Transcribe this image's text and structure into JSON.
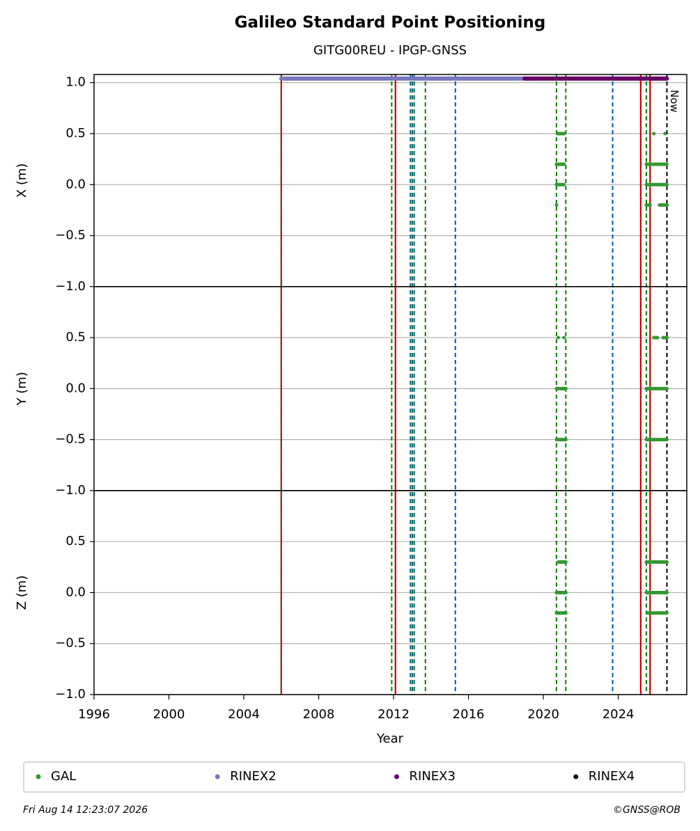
{
  "chart_data": {
    "type": "scatter",
    "title": "Galileo Standard Point Positioning",
    "subtitle": "GITG00REU - IPGP-GNSS",
    "xlabel": "Year",
    "xlim": [
      1996,
      2027.66
    ],
    "xticks": [
      1996,
      2000,
      2004,
      2008,
      2012,
      2016,
      2020,
      2024
    ],
    "grid": true,
    "series": [
      {
        "name": "GAL",
        "color": "#339933"
      },
      {
        "name": "RINEX2",
        "color": "#7777bb",
        "x": [
          2006.0,
          2019.0
        ],
        "y": [
          1.04,
          1.04
        ]
      },
      {
        "name": "RINEX3",
        "color": "#660066",
        "x": [
          2019.0,
          2026.6
        ],
        "y": [
          1.04,
          1.04
        ]
      },
      {
        "name": "RINEX4",
        "color": "#220011"
      }
    ],
    "events": [
      {
        "x": 2006.0,
        "color": "#cc0000",
        "style": "solid"
      },
      {
        "x": 2006.0,
        "color": "#008000",
        "style": "dotted"
      },
      {
        "x": 2011.9,
        "color": "#008000",
        "style": "dashed"
      },
      {
        "x": 2012.1,
        "color": "#cc0000",
        "style": "solid"
      },
      {
        "x": 2012.9,
        "color": "#0055aa",
        "style": "dashed"
      },
      {
        "x": 2013.0,
        "color": "#008000",
        "style": "dashed"
      },
      {
        "x": 2013.1,
        "color": "#0055aa",
        "style": "dashed"
      },
      {
        "x": 2013.7,
        "color": "#008000",
        "style": "dashed"
      },
      {
        "x": 2015.3,
        "color": "#0055aa",
        "style": "dashed"
      },
      {
        "x": 2020.7,
        "color": "#008000",
        "style": "dashed"
      },
      {
        "x": 2021.2,
        "color": "#008000",
        "style": "dashed"
      },
      {
        "x": 2023.7,
        "color": "#0055aa",
        "style": "dashed"
      },
      {
        "x": 2025.2,
        "color": "#cc0000",
        "style": "solid"
      },
      {
        "x": 2025.5,
        "color": "#008000",
        "style": "dashed"
      },
      {
        "x": 2025.7,
        "color": "#cc0000",
        "style": "solid"
      },
      {
        "x": 2026.6,
        "color": "#000000",
        "style": "dashed",
        "label": "Now"
      }
    ],
    "panels": [
      {
        "ylabel": "X (m)",
        "ylim": [
          -1,
          1.08
        ],
        "yticks": [
          {
            "value": 1,
            "label": "1.0"
          },
          0.5,
          {
            "value": 0,
            "label": "0.0"
          },
          {
            "value": -0.5,
            "label": "−0.5"
          },
          {
            "value": -1,
            "label": "−1.0"
          }
        ],
        "runs": [
          {
            "x": [
              2020.75,
              2021.1
            ],
            "y": 0.5
          },
          {
            "x": [
              2020.7,
              2021.1
            ],
            "y": 0.2
          },
          {
            "x": [
              2020.7,
              2021.1
            ],
            "y": 0.0
          },
          {
            "x": [
              2020.7,
              2020.7
            ],
            "y": -0.2
          },
          {
            "x": [
              2025.5,
              2026.6
            ],
            "y": 0.2
          },
          {
            "x": [
              2025.5,
              2026.6
            ],
            "y": 0.0
          },
          {
            "x": [
              2025.5,
              2025.7
            ],
            "y": -0.2
          },
          {
            "x": [
              2026.2,
              2026.6
            ],
            "y": -0.2
          },
          {
            "x": [
              2025.9,
              2025.9
            ],
            "y": 0.5
          },
          {
            "x": [
              2026.5,
              2026.5
            ],
            "y": 0.5
          }
        ]
      },
      {
        "ylabel": "Y (m)",
        "ylim": [
          -1,
          1
        ],
        "yticks": [
          0.5,
          {
            "value": 0,
            "label": "0.0"
          },
          {
            "value": -0.5,
            "label": "−0.5"
          },
          {
            "value": -1,
            "label": "−1.0"
          }
        ],
        "runs": [
          {
            "x": [
              2020.8,
              2020.8
            ],
            "y": 0.5
          },
          {
            "x": [
              2021.1,
              2021.1
            ],
            "y": 0.5
          },
          {
            "x": [
              2020.7,
              2021.2
            ],
            "y": 0.0
          },
          {
            "x": [
              2020.7,
              2021.2
            ],
            "y": -0.5
          },
          {
            "x": [
              2025.9,
              2026.1
            ],
            "y": 0.5
          },
          {
            "x": [
              2026.4,
              2026.6
            ],
            "y": 0.5
          },
          {
            "x": [
              2025.5,
              2026.6
            ],
            "y": 0.0
          },
          {
            "x": [
              2025.5,
              2026.6
            ],
            "y": -0.5
          }
        ]
      },
      {
        "ylabel": "Z (m)",
        "ylim": [
          -1,
          1
        ],
        "yticks": [
          0.5,
          {
            "value": 0,
            "label": "0.0"
          },
          {
            "value": -0.5,
            "label": "−0.5"
          },
          {
            "value": -1,
            "label": "−1.0"
          }
        ],
        "runs": [
          {
            "x": [
              2020.8,
              2021.2
            ],
            "y": 0.3
          },
          {
            "x": [
              2020.7,
              2021.2
            ],
            "y": 0.0
          },
          {
            "x": [
              2020.7,
              2021.2
            ],
            "y": -0.2
          },
          {
            "x": [
              2025.5,
              2026.6
            ],
            "y": 0.3
          },
          {
            "x": [
              2025.5,
              2026.6
            ],
            "y": 0.0
          },
          {
            "x": [
              2025.6,
              2026.6
            ],
            "y": -0.2
          }
        ]
      }
    ]
  },
  "footer": {
    "date": "Fri Aug 14 12:23:07 2026",
    "copyright": "©GNSS@ROB"
  }
}
